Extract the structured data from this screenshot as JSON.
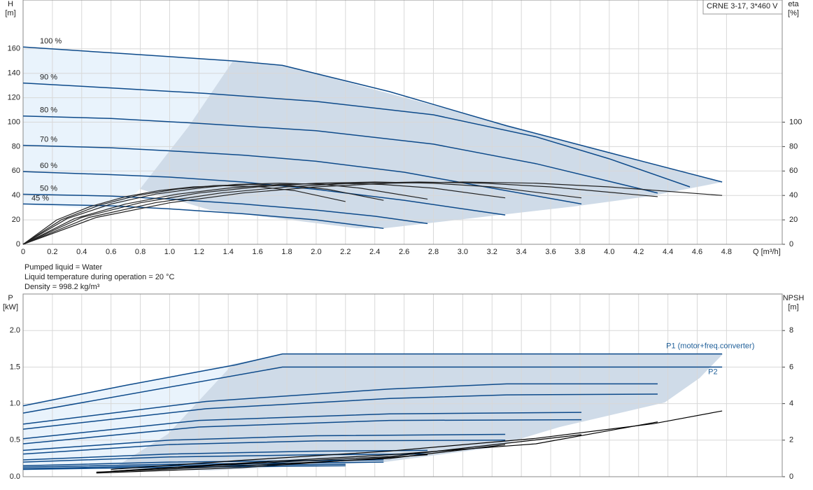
{
  "title": "CRNE 3-17, 3*460 V",
  "notes": [
    "Pumped liquid = Water",
    "Liquid temperature during operation = 20 °C",
    "Density = 998.2 kg/m³"
  ],
  "chart_data": [
    {
      "type": "line",
      "x_label": "Q [m³/h]",
      "y_label": "H",
      "y_unit": "[m]",
      "y2_label": "eta",
      "y2_unit": "[%]",
      "xlim": [
        0,
        5.18
      ],
      "ylim": [
        0,
        200
      ],
      "y2lim": [
        0,
        200
      ],
      "grid": true,
      "xticks": [
        0,
        0.2,
        0.4,
        0.6,
        0.8,
        {
          "value": 1,
          "label": "1.0"
        },
        1.2,
        1.4,
        1.6,
        1.8,
        {
          "value": 2,
          "label": "2.0"
        },
        2.2,
        2.4,
        2.6,
        2.8,
        {
          "value": 3,
          "label": "3.0"
        },
        3.2,
        3.4,
        3.6,
        3.8,
        {
          "value": 4,
          "label": "4.0"
        },
        4.2,
        4.4,
        4.6,
        4.8
      ],
      "yticks": [
        0,
        20,
        40,
        60,
        80,
        100,
        120,
        140,
        160
      ],
      "y2ticks": [
        0,
        20,
        40,
        60,
        80,
        100
      ],
      "series": [
        {
          "name": "100 %",
          "color": "#0d4a8a",
          "x": [
            0,
            0.7,
            1.45,
            1.77,
            2.5,
            3.3,
            4,
            4.77
          ],
          "values": [
            161.5,
            156,
            150,
            146.5,
            125,
            97,
            75,
            51
          ]
        },
        {
          "name": "90 %",
          "color": "#0d4a8a",
          "x": [
            0,
            0.6,
            1.25,
            2,
            2.8,
            3.5,
            4,
            4.55
          ],
          "values": [
            132,
            128,
            123.5,
            117,
            106,
            88,
            70,
            47
          ]
        },
        {
          "name": "80 %",
          "color": "#0d4a8a",
          "x": [
            0,
            0.6,
            1.2,
            2,
            2.8,
            3.5,
            4.33
          ],
          "values": [
            105,
            103,
            99,
            93,
            82,
            66,
            42
          ]
        },
        {
          "name": "70 %",
          "color": "#0d4a8a",
          "x": [
            0,
            0.6,
            1,
            1.5,
            2,
            2.6,
            3.2,
            3.81
          ],
          "values": [
            81,
            79,
            76.5,
            73,
            68,
            59,
            46,
            33
          ]
        },
        {
          "name": "60 %",
          "color": "#0d4a8a",
          "x": [
            0,
            0.6,
            1,
            1.5,
            2,
            2.6,
            3.29
          ],
          "values": [
            59.5,
            57,
            55,
            51,
            45,
            36,
            24
          ]
        },
        {
          "name": "50 %",
          "color": "#0d4a8a",
          "x": [
            0,
            0.6,
            1,
            1.5,
            2,
            2.4,
            2.76
          ],
          "values": [
            41,
            39.5,
            37,
            33,
            28,
            23,
            17
          ]
        },
        {
          "name": "45 %",
          "color": "#0d4a8a",
          "x": [
            0,
            0.6,
            1,
            1.5,
            2,
            2.46
          ],
          "values": [
            33,
            31.5,
            29,
            25,
            20,
            13
          ]
        },
        {
          "color": "#222222",
          "axis": "y2",
          "x": [
            0,
            0.5,
            1,
            1.5,
            2,
            2.5,
            3,
            3.5,
            4,
            4.77
          ],
          "values": [
            0,
            22,
            34,
            42,
            47,
            50,
            51,
            50,
            47,
            40
          ]
        },
        {
          "color": "#222222",
          "axis": "y2",
          "x": [
            0,
            0.45,
            0.9,
            1.35,
            1.8,
            2.25,
            2.7,
            3.15,
            3.6,
            4.33
          ],
          "values": [
            0,
            22,
            34,
            42,
            47,
            50,
            51,
            50,
            47,
            39
          ]
        },
        {
          "color": "#222222",
          "axis": "y2",
          "x": [
            0,
            0.4,
            0.8,
            1.2,
            1.6,
            2,
            2.4,
            2.8,
            3.2,
            3.81
          ],
          "values": [
            0,
            22,
            34,
            42,
            47,
            50,
            51,
            50,
            47,
            38
          ]
        },
        {
          "color": "#222222",
          "axis": "y2",
          "x": [
            0,
            0.35,
            0.7,
            1.05,
            1.4,
            1.75,
            2.1,
            2.45,
            2.8,
            3.29
          ],
          "values": [
            0,
            21,
            33,
            41,
            46,
            49,
            50,
            49,
            46,
            38
          ]
        },
        {
          "color": "#222222",
          "axis": "y2",
          "x": [
            0,
            0.3,
            0.6,
            0.9,
            1.2,
            1.45,
            1.75,
            2.05,
            2.3,
            2.76
          ],
          "values": [
            0,
            21,
            33,
            41,
            46,
            49,
            50,
            49,
            46,
            37
          ]
        },
        {
          "color": "#222222",
          "axis": "y2",
          "x": [
            0,
            0.26,
            0.52,
            0.78,
            1.04,
            1.3,
            1.56,
            1.82,
            2.08,
            2.46
          ],
          "values": [
            0,
            20,
            32,
            40,
            45,
            48,
            49,
            48,
            45,
            36
          ]
        },
        {
          "color": "#222222",
          "axis": "y2",
          "x": [
            0,
            0.23,
            0.46,
            0.7,
            0.93,
            1.16,
            1.39,
            1.62,
            1.85,
            2.2
          ],
          "values": [
            0,
            20,
            31,
            39,
            44,
            47,
            48,
            47,
            44,
            35
          ]
        }
      ]
    },
    {
      "type": "line",
      "y_label": "P",
      "y_unit": "[kW]",
      "y2_label": "NPSH",
      "y2_unit": "[m]",
      "xlim": [
        0,
        5.18
      ],
      "ylim": [
        0,
        2.5
      ],
      "y2lim": [
        0,
        10
      ],
      "grid": true,
      "xticks": [
        0,
        0.2,
        0.4,
        0.6,
        0.8,
        1,
        1.2,
        1.4,
        1.6,
        1.8,
        2,
        2.2,
        2.4,
        2.6,
        2.8,
        3,
        3.2,
        3.4,
        3.6,
        3.8,
        4,
        4.2,
        4.4,
        4.6,
        4.8
      ],
      "yticks": [
        {
          "value": 0,
          "label": "0.0"
        },
        0.5,
        {
          "value": 1,
          "label": "1.0"
        },
        1.5,
        {
          "value": 2,
          "label": "2.0"
        }
      ],
      "y2ticks": [
        0,
        2,
        4,
        6,
        8
      ],
      "series": [
        {
          "name": "P1 (motor+freq.converter)",
          "color": "#0d4a8a",
          "x": [
            0,
            0.7,
            1.45,
            1.77,
            4.77
          ],
          "values": [
            0.97,
            1.25,
            1.53,
            1.68,
            1.68
          ]
        },
        {
          "name": "P2",
          "color": "#0d4a8a",
          "x": [
            0,
            1.77,
            4.77
          ],
          "values": [
            0.87,
            1.5,
            1.5
          ]
        },
        {
          "color": "#0d4a8a",
          "x": [
            0,
            1.25,
            2.5,
            3.3,
            4.33
          ],
          "values": [
            0.72,
            1.03,
            1.2,
            1.27,
            1.27
          ]
        },
        {
          "color": "#0d4a8a",
          "x": [
            0,
            1.25,
            2.5,
            3.3,
            4.33
          ],
          "values": [
            0.65,
            0.93,
            1.07,
            1.12,
            1.13
          ]
        },
        {
          "color": "#0d4a8a",
          "x": [
            0,
            1.2,
            2.5,
            3.81
          ],
          "values": [
            0.52,
            0.77,
            0.86,
            0.88
          ]
        },
        {
          "color": "#0d4a8a",
          "x": [
            0,
            1.2,
            2.5,
            3.81
          ],
          "values": [
            0.45,
            0.68,
            0.77,
            0.78
          ]
        },
        {
          "color": "#0d4a8a",
          "x": [
            0,
            1,
            2,
            3.29
          ],
          "values": [
            0.36,
            0.5,
            0.56,
            0.58
          ]
        },
        {
          "color": "#0d4a8a",
          "x": [
            0,
            1,
            2,
            3.29
          ],
          "values": [
            0.31,
            0.44,
            0.49,
            0.5
          ]
        },
        {
          "color": "#0d4a8a",
          "x": [
            0,
            1,
            2,
            2.76
          ],
          "values": [
            0.23,
            0.31,
            0.35,
            0.36
          ]
        },
        {
          "color": "#0d4a8a",
          "x": [
            0,
            1,
            2,
            2.76
          ],
          "values": [
            0.2,
            0.27,
            0.3,
            0.31
          ]
        },
        {
          "color": "#0d4a8a",
          "x": [
            0,
            1,
            2.46
          ],
          "values": [
            0.15,
            0.2,
            0.23
          ]
        },
        {
          "color": "#0d4a8a",
          "x": [
            0,
            1,
            2.46
          ],
          "values": [
            0.13,
            0.17,
            0.2
          ]
        },
        {
          "color": "#0d4a8a",
          "x": [
            0,
            1,
            2.2
          ],
          "values": [
            0.11,
            0.15,
            0.17
          ]
        },
        {
          "color": "#0d4a8a",
          "x": [
            0,
            1,
            2.2
          ],
          "values": [
            0.1,
            0.13,
            0.15
          ]
        },
        {
          "color": "#000000",
          "axis": "y2",
          "x": [
            0.6,
            1.5,
            2.5,
            3.5,
            4.3,
            4.77
          ],
          "values": [
            0.4,
            0.9,
            1.4,
            2.1,
            2.9,
            3.6
          ]
        },
        {
          "color": "#000000",
          "axis": "y2",
          "x": [
            0.6,
            1.5,
            2.5,
            3.5,
            4.33
          ],
          "values": [
            0.3,
            0.75,
            1.2,
            1.8,
            3
          ]
        },
        {
          "color": "#000000",
          "axis": "y2",
          "x": [
            0.6,
            1.5,
            2.5,
            3.81
          ],
          "values": [
            0.3,
            0.7,
            1.1,
            2.3
          ]
        },
        {
          "color": "#000000",
          "axis": "y2",
          "x": [
            0.5,
            1.5,
            2.5,
            3.29
          ],
          "values": [
            0.25,
            0.6,
            1,
            1.75
          ]
        },
        {
          "color": "#000000",
          "axis": "y2",
          "x": [
            0.5,
            1.5,
            2.76
          ],
          "values": [
            0.2,
            0.5,
            1.2
          ]
        }
      ]
    }
  ]
}
